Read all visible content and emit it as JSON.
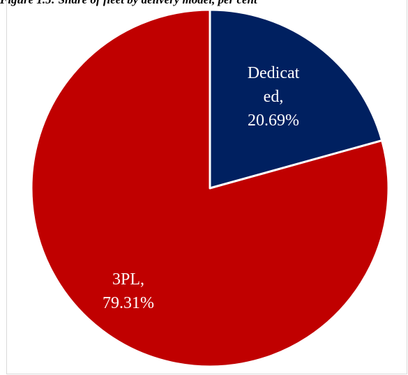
{
  "caption": "Figure 1.5: Share of fleet by delivery model, per cent",
  "chart_data": {
    "type": "pie",
    "title": "",
    "start_angle_deg": 90,
    "direction": "clockwise",
    "slices": [
      {
        "name": "Dedicated",
        "value": 20.69,
        "label_lines": [
          "Dedicat",
          "ed,",
          "20.69%"
        ],
        "color": "#002060"
      },
      {
        "name": "3PL",
        "value": 79.31,
        "label_lines": [
          "3PL,",
          "79.31%"
        ],
        "color": "#c00000"
      }
    ],
    "legend": "none"
  }
}
